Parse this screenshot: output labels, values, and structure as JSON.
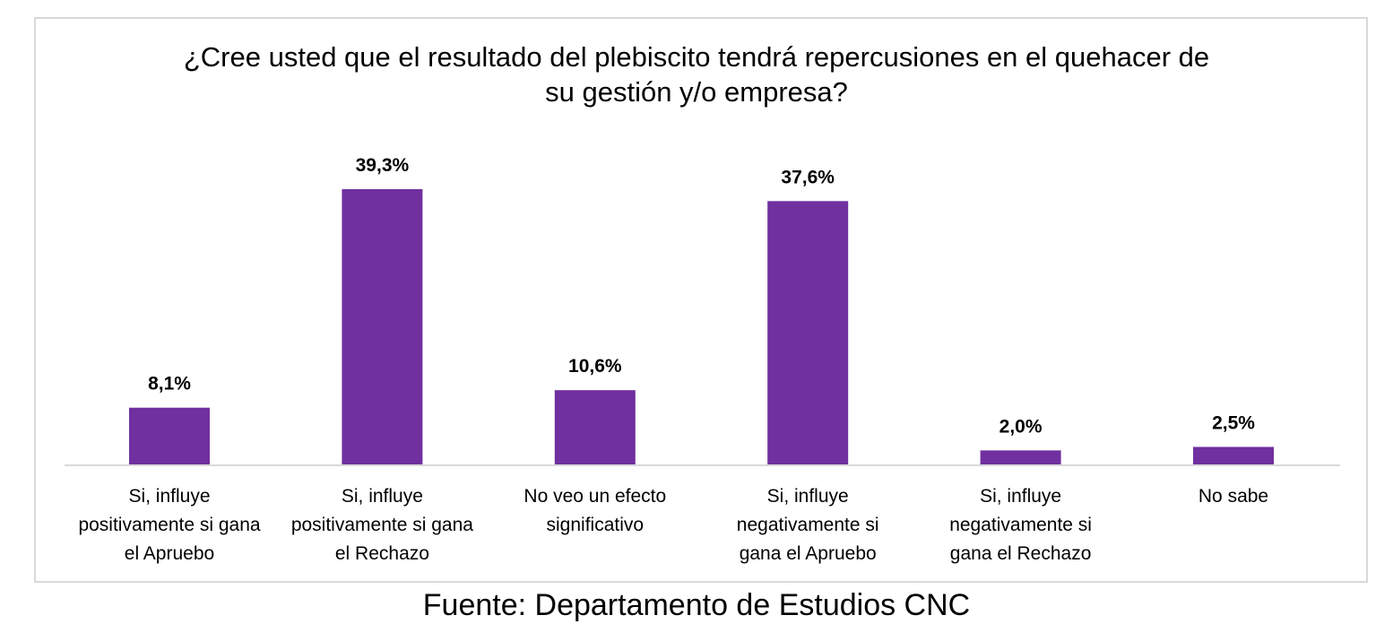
{
  "chart_data": {
    "type": "bar",
    "title_lines": [
      "¿Cree usted que el resultado del plebiscito tendrá repercusiones en el quehacer de",
      "su gestión y/o empresa?"
    ],
    "categories": [
      "Si, influye\npositivamente si gana\nel Apruebo",
      "Si, influye\npositivamente si gana\nel Rechazo",
      "No veo un efecto\nsignificativo",
      "Si, influye\nnegativamente si\ngana el Apruebo",
      "Si, influye\nnegativamente si\ngana el Rechazo",
      "No sabe"
    ],
    "values": [
      8.1,
      39.3,
      10.6,
      37.6,
      2.0,
      2.5
    ],
    "data_labels": [
      "8,1%",
      "39,3%",
      "10,6%",
      "37,6%",
      "2,0%",
      "2,5%"
    ],
    "ylim": [
      0,
      39.3
    ],
    "grid": false,
    "legend": "none",
    "bar_color": "#7030a0",
    "axis_color": "#d9d9d9"
  },
  "source": "Fuente: Departamento de Estudios CNC"
}
